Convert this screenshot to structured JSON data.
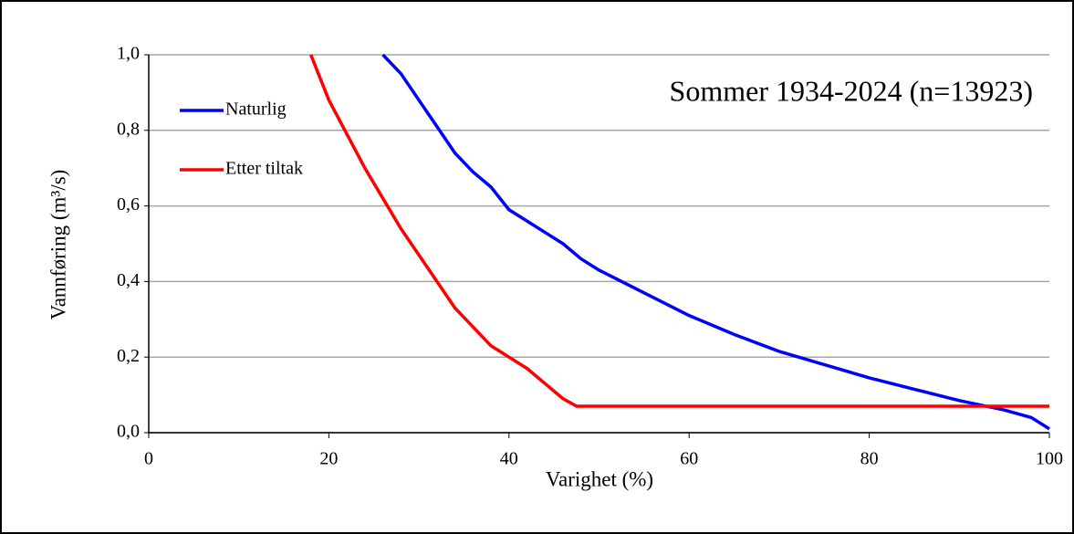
{
  "chart_data": {
    "type": "line",
    "x_label": "Varighet (%)",
    "y_label": "Vannføring (m³/s)",
    "annotation": "Sommer 1934-2024 (n=13923)",
    "xlim": [
      0,
      100
    ],
    "xticks": [
      0,
      20,
      40,
      60,
      80,
      100
    ],
    "ylim": [
      0,
      1
    ],
    "yticks": [
      {
        "value": 0,
        "label": "0,0"
      },
      {
        "value": 0.2,
        "label": "0,2"
      },
      {
        "value": 0.4,
        "label": "0,4"
      },
      {
        "value": 0.6,
        "label": "0,6"
      },
      {
        "value": 0.8,
        "label": "0,8"
      },
      {
        "value": 1,
        "label": "1,0"
      }
    ],
    "grid": true,
    "legend": "upper-left",
    "series": [
      {
        "name": "Naturlig",
        "color": "#0000ff",
        "x": [
          26,
          28,
          30,
          32,
          34,
          36,
          38,
          40,
          42,
          44,
          46,
          48,
          50,
          55,
          60,
          65,
          70,
          75,
          80,
          85,
          90,
          95,
          98,
          100
        ],
        "values": [
          1.0,
          0.95,
          0.88,
          0.81,
          0.74,
          0.69,
          0.65,
          0.59,
          0.56,
          0.53,
          0.5,
          0.46,
          0.43,
          0.37,
          0.31,
          0.26,
          0.215,
          0.18,
          0.145,
          0.115,
          0.085,
          0.06,
          0.04,
          0.01
        ]
      },
      {
        "name": "Etter tiltak",
        "color": "#ff0000",
        "x": [
          18,
          20,
          22,
          24,
          26,
          28,
          30,
          32,
          34,
          36,
          38,
          40,
          42,
          44,
          46,
          47.5,
          100
        ],
        "values": [
          1.0,
          0.88,
          0.79,
          0.7,
          0.62,
          0.54,
          0.47,
          0.4,
          0.33,
          0.28,
          0.23,
          0.2,
          0.17,
          0.13,
          0.09,
          0.07,
          0.07
        ]
      }
    ]
  }
}
